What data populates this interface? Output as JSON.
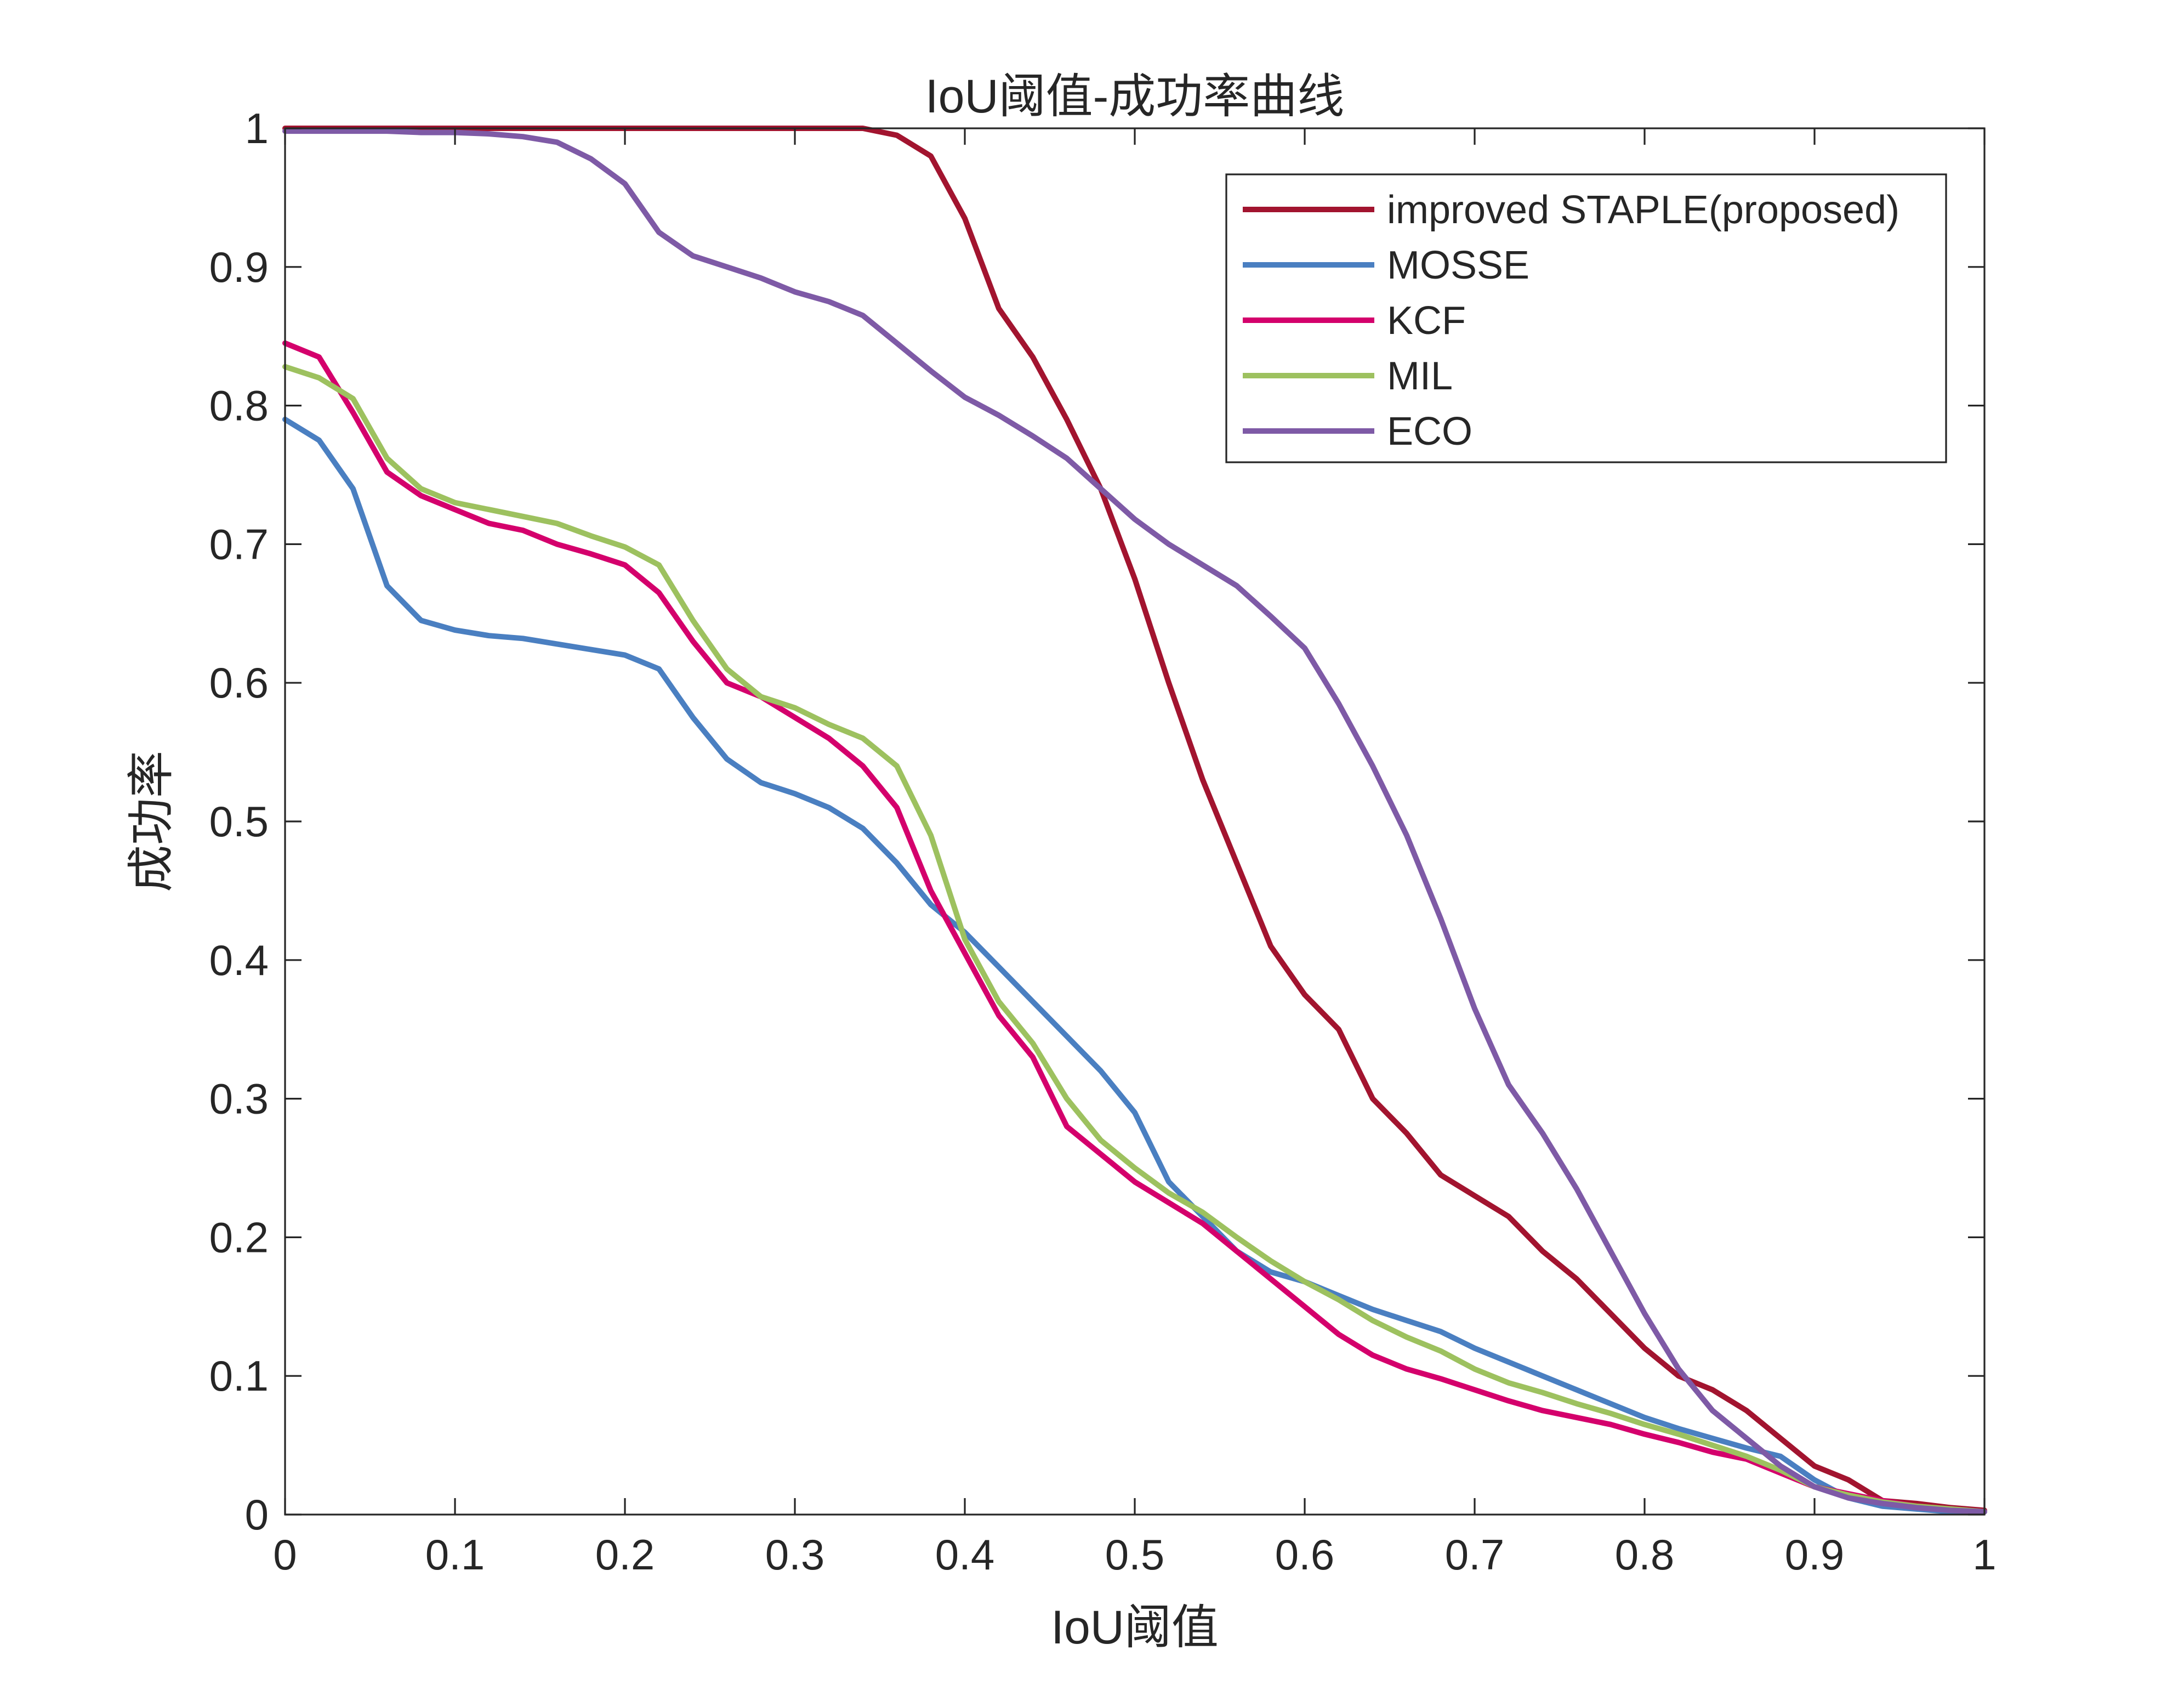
{
  "chart_data": {
    "type": "line",
    "title": "IoU阈值-成功率曲线",
    "xlabel": "IoU阈值",
    "ylabel": "成功率",
    "xlim": [
      0,
      1
    ],
    "ylim": [
      0,
      1
    ],
    "xticks": [
      "0",
      "0.1",
      "0.2",
      "0.3",
      "0.4",
      "0.5",
      "0.6",
      "0.7",
      "0.8",
      "0.9",
      "1"
    ],
    "yticks": [
      "0",
      "0.1",
      "0.2",
      "0.3",
      "0.4",
      "0.5",
      "0.6",
      "0.7",
      "0.8",
      "0.9",
      "1"
    ],
    "grid": false,
    "legend_position": "top-right",
    "x": [
      0,
      0.02,
      0.04,
      0.06,
      0.08,
      0.1,
      0.12,
      0.14,
      0.16,
      0.18,
      0.2,
      0.22,
      0.24,
      0.26,
      0.28,
      0.3,
      0.32,
      0.34,
      0.36,
      0.38,
      0.4,
      0.42,
      0.44,
      0.46,
      0.48,
      0.5,
      0.52,
      0.54,
      0.56,
      0.58,
      0.6,
      0.62,
      0.64,
      0.66,
      0.68,
      0.7,
      0.72,
      0.74,
      0.76,
      0.78,
      0.8,
      0.82,
      0.84,
      0.86,
      0.88,
      0.9,
      0.92,
      0.94,
      0.96,
      0.98,
      1
    ],
    "series": [
      {
        "name": "improved STAPLE(proposed)",
        "color": "#A2142F",
        "values": [
          1,
          1,
          1,
          1,
          1,
          1,
          1,
          1,
          1,
          1,
          1,
          1,
          1,
          1,
          1,
          1,
          1,
          1,
          0.995,
          0.98,
          0.935,
          0.87,
          0.835,
          0.79,
          0.74,
          0.675,
          0.6,
          0.53,
          0.47,
          0.41,
          0.375,
          0.35,
          0.3,
          0.275,
          0.245,
          0.23,
          0.215,
          0.19,
          0.17,
          0.145,
          0.12,
          0.1,
          0.09,
          0.075,
          0.055,
          0.035,
          0.025,
          0.01,
          0.008,
          0.005,
          0.003
        ]
      },
      {
        "name": "MOSSE",
        "color": "#4A7FC1",
        "values": [
          0.79,
          0.775,
          0.74,
          0.67,
          0.645,
          0.638,
          0.634,
          0.632,
          0.628,
          0.624,
          0.62,
          0.61,
          0.575,
          0.545,
          0.528,
          0.52,
          0.51,
          0.495,
          0.47,
          0.44,
          0.42,
          0.395,
          0.37,
          0.345,
          0.32,
          0.29,
          0.24,
          0.215,
          0.19,
          0.175,
          0.168,
          0.158,
          0.148,
          0.14,
          0.132,
          0.12,
          0.11,
          0.1,
          0.09,
          0.08,
          0.07,
          0.062,
          0.055,
          0.048,
          0.042,
          0.025,
          0.012,
          0.006,
          0.004,
          0.002,
          0.002
        ]
      },
      {
        "name": "KCF",
        "color": "#D4006C",
        "values": [
          0.845,
          0.835,
          0.795,
          0.752,
          0.735,
          0.725,
          0.715,
          0.71,
          0.7,
          0.693,
          0.685,
          0.665,
          0.63,
          0.6,
          0.59,
          0.575,
          0.56,
          0.54,
          0.51,
          0.45,
          0.405,
          0.36,
          0.33,
          0.28,
          0.26,
          0.24,
          0.225,
          0.21,
          0.19,
          0.17,
          0.15,
          0.13,
          0.115,
          0.105,
          0.098,
          0.09,
          0.082,
          0.075,
          0.07,
          0.065,
          0.058,
          0.052,
          0.045,
          0.04,
          0.03,
          0.02,
          0.015,
          0.01,
          0.006,
          0.004,
          0.002
        ]
      },
      {
        "name": "MIL",
        "color": "#9DC15F",
        "values": [
          0.828,
          0.82,
          0.805,
          0.762,
          0.74,
          0.73,
          0.725,
          0.72,
          0.715,
          0.706,
          0.698,
          0.685,
          0.645,
          0.61,
          0.59,
          0.582,
          0.57,
          0.56,
          0.54,
          0.49,
          0.415,
          0.37,
          0.34,
          0.3,
          0.27,
          0.25,
          0.232,
          0.218,
          0.2,
          0.183,
          0.168,
          0.155,
          0.14,
          0.128,
          0.118,
          0.105,
          0.095,
          0.088,
          0.08,
          0.073,
          0.065,
          0.058,
          0.05,
          0.042,
          0.032,
          0.02,
          0.014,
          0.009,
          0.006,
          0.004,
          0.002
        ]
      },
      {
        "name": "ECO",
        "color": "#7E5AA6",
        "values": [
          0.998,
          0.998,
          0.998,
          0.998,
          0.997,
          0.997,
          0.996,
          0.994,
          0.99,
          0.978,
          0.96,
          0.925,
          0.908,
          0.9,
          0.892,
          0.882,
          0.875,
          0.865,
          0.845,
          0.825,
          0.806,
          0.793,
          0.778,
          0.762,
          0.74,
          0.718,
          0.7,
          0.685,
          0.67,
          0.648,
          0.625,
          0.585,
          0.54,
          0.49,
          0.43,
          0.365,
          0.31,
          0.275,
          0.235,
          0.19,
          0.145,
          0.105,
          0.075,
          0.055,
          0.035,
          0.02,
          0.012,
          0.008,
          0.005,
          0.003,
          0.002
        ]
      }
    ]
  }
}
